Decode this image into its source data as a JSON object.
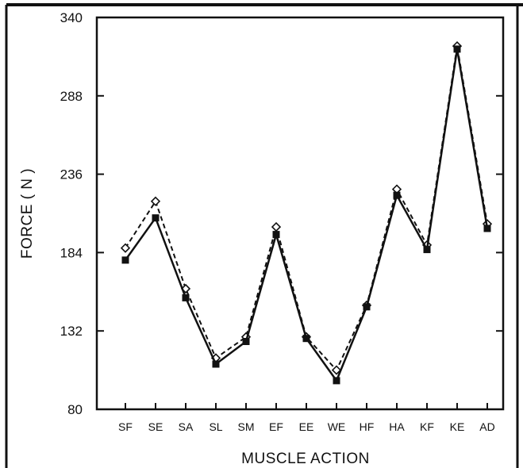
{
  "chart_data": {
    "type": "line",
    "xlabel": "MUSCLE ACTION",
    "ylabel": "FORCE ( N )",
    "ylim": [
      80,
      340
    ],
    "yticks": [
      80,
      132,
      184,
      236,
      288,
      340
    ],
    "categories": [
      "SF",
      "SE",
      "SA",
      "SL",
      "SM",
      "EF",
      "EE",
      "WE",
      "HF",
      "HA",
      "KF",
      "KE",
      "AD"
    ],
    "series": [
      {
        "style": "dashed",
        "marker": "open-diamond",
        "values": [
          187,
          218,
          160,
          114,
          128,
          201,
          128,
          106,
          149,
          226,
          189,
          321,
          203
        ]
      },
      {
        "style": "solid",
        "marker": "filled-square",
        "values": [
          179,
          207,
          154,
          110,
          125,
          196,
          127,
          99,
          148,
          222,
          186,
          319,
          200
        ]
      }
    ],
    "grid": false,
    "colors": {
      "line": "#111111",
      "frame": "#111111",
      "background": "#ffffff"
    }
  }
}
